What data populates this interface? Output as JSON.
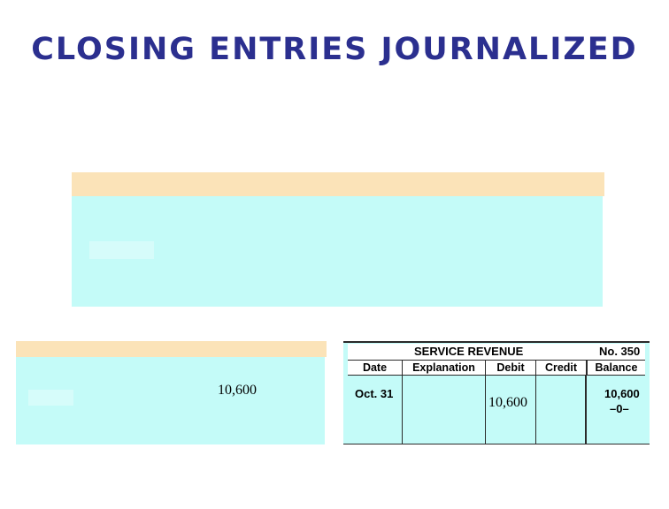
{
  "title": "CLOSING ENTRIES JOURNALIZED",
  "left_box": {
    "amount": "10,600"
  },
  "ledger": {
    "account_name": "SERVICE REVENUE",
    "account_no": "No. 350",
    "columns": [
      "Date",
      "Explanation",
      "Debit",
      "Credit",
      "Balance"
    ],
    "rows": [
      {
        "date": "Oct. 31",
        "explanation": "",
        "debit": "10,600",
        "credit": "",
        "balance": [
          "10,600",
          "–0–"
        ]
      }
    ]
  },
  "colors": {
    "title": "#2b2f8f",
    "band": "#fbe3b8",
    "area": "#c4fbf8"
  }
}
